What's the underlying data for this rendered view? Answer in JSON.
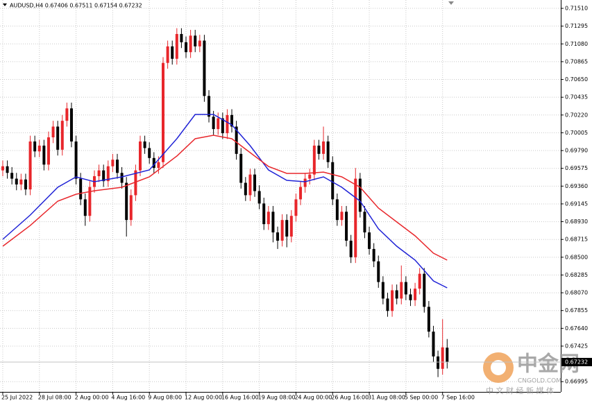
{
  "chart_data": {
    "type": "candlestick",
    "title": "AUDUSD,H4  0.67406 0.67511 0.67154 0.67232",
    "up_color": "#e8262b",
    "down_color": "#000000",
    "grid": true,
    "open": [
      0.6955,
      0.696,
      0.6952,
      0.6945,
      0.6938,
      0.6944,
      0.6932,
      0.699,
      0.6978,
      0.6985,
      0.6962,
      0.6995,
      0.7008,
      0.698,
      0.7015,
      0.703,
      0.699,
      0.6945,
      0.692,
      0.69,
      0.6935,
      0.6948,
      0.6955,
      0.6942,
      0.696,
      0.6968,
      0.6952,
      0.694,
      0.6895,
      0.6925,
      0.6955,
      0.699,
      0.6982,
      0.697,
      0.6958,
      0.6965,
      0.7085,
      0.7105,
      0.709,
      0.712,
      0.711,
      0.7098,
      0.7118,
      0.7105,
      0.7112,
      0.7045,
      0.702,
      0.7005,
      0.7018,
      0.7,
      0.7022,
      0.7008,
      0.6975,
      0.694,
      0.6925,
      0.695,
      0.693,
      0.6915,
      0.689,
      0.6905,
      0.688,
      0.687,
      0.6895,
      0.6875,
      0.69,
      0.692,
      0.6935,
      0.6945,
      0.695,
      0.6985,
      0.6975,
      0.699,
      0.6965,
      0.692,
      0.6895,
      0.6905,
      0.687,
      0.685,
      0.6945,
      0.6905,
      0.688,
      0.686,
      0.6845,
      0.682,
      0.68,
      0.6785,
      0.681,
      0.68,
      0.682,
      0.6805,
      0.6798,
      0.6812,
      0.683,
      0.679,
      0.676,
      0.673,
      0.6715,
      0.67406
    ],
    "high": [
      0.6967,
      0.6967,
      0.6959,
      0.6952,
      0.6951,
      0.6951,
      0.6997,
      0.6997,
      0.6992,
      0.6992,
      0.7002,
      0.7015,
      0.7015,
      0.7022,
      0.7037,
      0.7037,
      0.6997,
      0.6952,
      0.6927,
      0.6942,
      0.6955,
      0.6962,
      0.6962,
      0.6967,
      0.6975,
      0.6975,
      0.6959,
      0.6947,
      0.6932,
      0.6962,
      0.6997,
      0.6997,
      0.6989,
      0.6977,
      0.6972,
      0.7092,
      0.7112,
      0.7112,
      0.7127,
      0.7127,
      0.7117,
      0.7125,
      0.7125,
      0.7119,
      0.7119,
      0.7052,
      0.7027,
      0.7025,
      0.7025,
      0.7029,
      0.7029,
      0.7015,
      0.6982,
      0.6947,
      0.6957,
      0.6957,
      0.6937,
      0.6922,
      0.6912,
      0.6912,
      0.6887,
      0.6902,
      0.6902,
      0.6907,
      0.6927,
      0.6942,
      0.6952,
      0.6957,
      0.6992,
      0.6992,
      0.7008,
      0.6997,
      0.6972,
      0.6927,
      0.6912,
      0.6912,
      0.6877,
      0.6958,
      0.6952,
      0.6912,
      0.6887,
      0.6867,
      0.6852,
      0.6827,
      0.6807,
      0.6817,
      0.6817,
      0.684,
      0.6827,
      0.6812,
      0.6819,
      0.6837,
      0.6837,
      0.6797,
      0.6767,
      0.6737,
      0.6775,
      0.67511
    ],
    "low": [
      0.6948,
      0.6945,
      0.6938,
      0.6931,
      0.6931,
      0.6925,
      0.6925,
      0.6971,
      0.6971,
      0.6955,
      0.6955,
      0.6988,
      0.6973,
      0.6973,
      0.7008,
      0.6983,
      0.6938,
      0.6913,
      0.6888,
      0.6893,
      0.6928,
      0.6941,
      0.6935,
      0.6935,
      0.6953,
      0.6945,
      0.6933,
      0.6875,
      0.6888,
      0.6918,
      0.6948,
      0.6975,
      0.6963,
      0.6951,
      0.6951,
      0.6958,
      0.7078,
      0.7083,
      0.7083,
      0.7103,
      0.7091,
      0.7091,
      0.7098,
      0.7098,
      0.7038,
      0.7013,
      0.6998,
      0.6998,
      0.6993,
      0.6993,
      0.7001,
      0.6968,
      0.6933,
      0.6918,
      0.6918,
      0.6923,
      0.6908,
      0.6883,
      0.6883,
      0.6868,
      0.686,
      0.6863,
      0.6862,
      0.6868,
      0.6893,
      0.6913,
      0.6928,
      0.6938,
      0.6943,
      0.6968,
      0.6968,
      0.6958,
      0.6913,
      0.6888,
      0.6888,
      0.6863,
      0.6843,
      0.6843,
      0.6898,
      0.6873,
      0.6853,
      0.6838,
      0.6813,
      0.6793,
      0.6778,
      0.6778,
      0.6793,
      0.6793,
      0.6798,
      0.6791,
      0.6791,
      0.6805,
      0.6783,
      0.6753,
      0.6723,
      0.6705,
      0.6708,
      0.67154
    ],
    "close": [
      0.696,
      0.6952,
      0.6945,
      0.6938,
      0.6944,
      0.6932,
      0.699,
      0.6978,
      0.6985,
      0.6962,
      0.6995,
      0.7008,
      0.698,
      0.7015,
      0.703,
      0.699,
      0.6945,
      0.692,
      0.69,
      0.6935,
      0.6948,
      0.6955,
      0.6942,
      0.696,
      0.6968,
      0.6952,
      0.694,
      0.6895,
      0.6925,
      0.6955,
      0.699,
      0.6982,
      0.697,
      0.6958,
      0.6965,
      0.7085,
      0.7105,
      0.709,
      0.712,
      0.711,
      0.7098,
      0.7118,
      0.7105,
      0.7112,
      0.7045,
      0.702,
      0.7005,
      0.7018,
      0.7,
      0.7022,
      0.7008,
      0.6975,
      0.694,
      0.6925,
      0.695,
      0.693,
      0.6915,
      0.689,
      0.6905,
      0.688,
      0.687,
      0.6895,
      0.6875,
      0.69,
      0.692,
      0.6935,
      0.6945,
      0.695,
      0.6985,
      0.6975,
      0.699,
      0.6965,
      0.692,
      0.6895,
      0.6905,
      0.687,
      0.685,
      0.6945,
      0.6905,
      0.688,
      0.686,
      0.6845,
      0.682,
      0.68,
      0.6785,
      0.681,
      0.68,
      0.682,
      0.6805,
      0.6798,
      0.6812,
      0.683,
      0.679,
      0.676,
      0.673,
      0.6715,
      0.6741,
      0.67232
    ],
    "lines": [
      {
        "color": "#1f22d6",
        "x": [
          0,
          6,
          12,
          16,
          20,
          26,
          32,
          38,
          42,
          46,
          50,
          54,
          58,
          62,
          66,
          70,
          74,
          78,
          82,
          86,
          90,
          94,
          97
        ],
        "values": [
          0.68717,
          0.6901,
          0.69346,
          0.69472,
          0.69413,
          0.69472,
          0.69556,
          0.69933,
          0.70227,
          0.70227,
          0.70101,
          0.69849,
          0.69556,
          0.6943,
          0.69413,
          0.69472,
          0.69346,
          0.69178,
          0.68843,
          0.68633,
          0.68465,
          0.68213,
          0.68129
        ]
      },
      {
        "color": "#e8262b",
        "x": [
          0,
          6,
          12,
          16,
          20,
          26,
          32,
          38,
          42,
          46,
          50,
          54,
          58,
          62,
          66,
          70,
          74,
          78,
          82,
          86,
          90,
          94,
          97
        ],
        "values": [
          0.68633,
          0.68884,
          0.69178,
          0.69262,
          0.69304,
          0.69346,
          0.69472,
          0.69723,
          0.69933,
          0.69975,
          0.69933,
          0.69765,
          0.69598,
          0.69514,
          0.69514,
          0.6953,
          0.69472,
          0.69346,
          0.69094,
          0.68926,
          0.68759,
          0.68549,
          0.68465
        ]
      }
    ],
    "xlim": [
      -0.6,
      121.8
    ],
    "xticks": [
      {
        "value": 0,
        "label": "25 Jul 2022"
      },
      {
        "value": 8,
        "label": "28 Jul 08:00"
      },
      {
        "value": 16,
        "label": "2 Aug 00:00"
      },
      {
        "value": 24,
        "label": "4 Aug 16:00"
      },
      {
        "value": 32,
        "label": "9 Aug 08:00"
      },
      {
        "value": 40,
        "label": "12 Aug 00:00"
      },
      {
        "value": 48,
        "label": "16 Aug 16:00"
      },
      {
        "value": 56,
        "label": "19 Aug 08:00"
      },
      {
        "value": 64,
        "label": "24 Aug 00:00"
      },
      {
        "value": 72,
        "label": "26 Aug 16:00"
      },
      {
        "value": 80,
        "label": "31 Aug 08:00"
      },
      {
        "value": 88,
        "label": "5 Sep 00:00"
      },
      {
        "value": 96,
        "label": "7 Sep 16:00"
      }
    ],
    "ylim": [
      0.66871,
      0.71611
    ],
    "yticks": [
      {
        "value": 0.7151,
        "label": "0.71510"
      },
      {
        "value": 0.71295,
        "label": "0.71295"
      },
      {
        "value": 0.7108,
        "label": "0.71080"
      },
      {
        "value": 0.70865,
        "label": "0.70865"
      },
      {
        "value": 0.7065,
        "label": "0.70650"
      },
      {
        "value": 0.70435,
        "label": "0.70435"
      },
      {
        "value": 0.7022,
        "label": "0.70220"
      },
      {
        "value": 0.70005,
        "label": "0.70005"
      },
      {
        "value": 0.6979,
        "label": "0.69790"
      },
      {
        "value": 0.69575,
        "label": "0.69575"
      },
      {
        "value": 0.6936,
        "label": "0.69360"
      },
      {
        "value": 0.69145,
        "label": "0.69145"
      },
      {
        "value": 0.6893,
        "label": "0.68930"
      },
      {
        "value": 0.68715,
        "label": "0.68715"
      },
      {
        "value": 0.685,
        "label": "0.68500"
      },
      {
        "value": 0.68285,
        "label": "0.68285"
      },
      {
        "value": 0.6807,
        "label": "0.68070"
      },
      {
        "value": 0.67855,
        "label": "0.67855"
      },
      {
        "value": 0.6764,
        "label": "0.67640"
      },
      {
        "value": 0.67425,
        "label": "0.67425"
      },
      {
        "value": 0.66995,
        "label": "0.66995"
      }
    ]
  },
  "watermark": {
    "brand": "中金网",
    "site": "CNGOLD.COM",
    "slogan": "中 文 财 经 新 媒 体"
  }
}
